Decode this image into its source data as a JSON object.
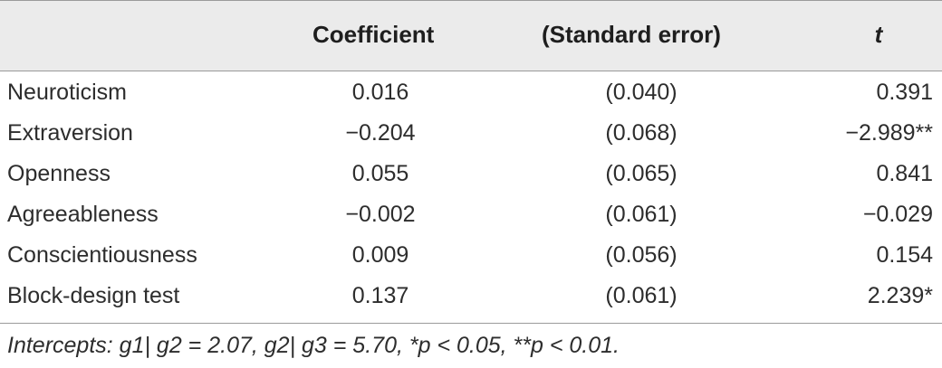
{
  "table": {
    "columns": [
      "",
      "Coefficient",
      "(Standard error)",
      "t"
    ],
    "rows": [
      {
        "label": "Neuroticism",
        "coefficient": "0.016",
        "standard_error": "(0.040)",
        "t": "0.391"
      },
      {
        "label": "Extraversion",
        "coefficient": "−0.204",
        "standard_error": "(0.068)",
        "t": "−2.989**"
      },
      {
        "label": "Openness",
        "coefficient": "0.055",
        "standard_error": "(0.065)",
        "t": "0.841"
      },
      {
        "label": "Agreeableness",
        "coefficient": "−0.002",
        "standard_error": "(0.061)",
        "t": "−0.029"
      },
      {
        "label": "Conscientiousness",
        "coefficient": "0.009",
        "standard_error": "(0.056)",
        "t": "0.154"
      },
      {
        "label": "Block-design test",
        "coefficient": "0.137",
        "standard_error": "(0.061)",
        "t": "2.239*"
      }
    ],
    "footnote": "Intercepts: g1| g2 = 2.07, g2| g3 = 5.70, *p < 0.05, **p < 0.01."
  },
  "colors": {
    "header_background": "#ebebeb",
    "rule": "#9a9a9a",
    "text": "#2d2d2d"
  }
}
